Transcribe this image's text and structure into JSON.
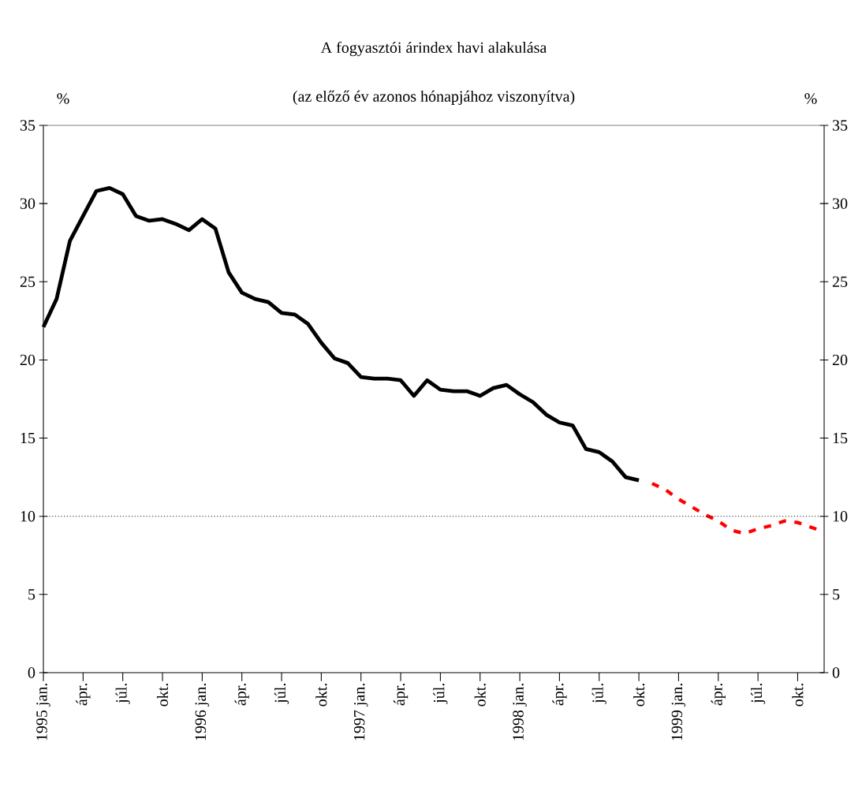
{
  "chart_data": {
    "type": "line",
    "title": "A fogyasztói árindex havi alakulása",
    "subtitle": "(az előző év azonos hónapjához viszonyítva)",
    "ylabel": "%",
    "y2label": "%",
    "categories": [
      "1995 jan.",
      null,
      null,
      "ápr.",
      null,
      null,
      "júl.",
      null,
      null,
      "okt.",
      null,
      null,
      "1996 jan.",
      null,
      null,
      "ápr.",
      null,
      null,
      "júl.",
      null,
      null,
      "okt.",
      null,
      null,
      "1997 jan.",
      null,
      null,
      "ápr.",
      null,
      null,
      "júl.",
      null,
      null,
      "okt.",
      null,
      null,
      "1998 jan.",
      null,
      null,
      "ápr.",
      null,
      null,
      "júl.",
      null,
      null,
      "okt.",
      null,
      null,
      "1999 jan.",
      null,
      null,
      "ápr.",
      null,
      null,
      "júl.",
      null,
      null,
      "okt.",
      null,
      null
    ],
    "series": [
      {
        "color": "#000000",
        "line_style": "solid",
        "values": [
          22.1,
          23.9,
          27.6,
          29.2,
          30.8,
          31.0,
          30.6,
          29.2,
          28.9,
          29.0,
          28.7,
          28.3,
          29.0,
          28.4,
          25.6,
          24.3,
          23.9,
          23.7,
          23.0,
          22.9,
          22.3,
          21.1,
          20.1,
          19.8,
          18.9,
          18.8,
          18.8,
          18.7,
          17.7,
          18.7,
          18.1,
          18.0,
          18.0,
          17.7,
          18.2,
          18.4,
          17.8,
          17.3,
          16.5,
          16.0,
          15.8,
          14.3,
          14.1,
          13.5,
          12.5,
          12.3,
          null,
          null,
          null,
          null,
          null,
          null,
          null,
          null,
          null,
          null,
          null,
          null,
          null,
          null
        ]
      },
      {
        "color": "#ff0000",
        "line_style": "dashed",
        "values": [
          null,
          null,
          null,
          null,
          null,
          null,
          null,
          null,
          null,
          null,
          null,
          null,
          null,
          null,
          null,
          null,
          null,
          null,
          null,
          null,
          null,
          null,
          null,
          null,
          null,
          null,
          null,
          null,
          null,
          null,
          null,
          null,
          null,
          null,
          null,
          null,
          null,
          null,
          null,
          null,
          null,
          null,
          null,
          null,
          null,
          null,
          12.1,
          11.7,
          11.1,
          10.6,
          10.1,
          9.7,
          9.1,
          8.9,
          9.2,
          9.4,
          9.7,
          9.6,
          9.3,
          9.0
        ]
      }
    ],
    "ylim": [
      0,
      35
    ],
    "yticks": [
      0,
      5,
      10,
      15,
      20,
      25,
      30,
      35
    ],
    "y2lim": [
      0,
      35
    ],
    "y2ticks": [
      0,
      5,
      10,
      15,
      20,
      25,
      30,
      35
    ],
    "ref_lines": [
      {
        "axis": "y",
        "value": 10,
        "line_style": "dotted",
        "color": "#000000"
      }
    ]
  }
}
